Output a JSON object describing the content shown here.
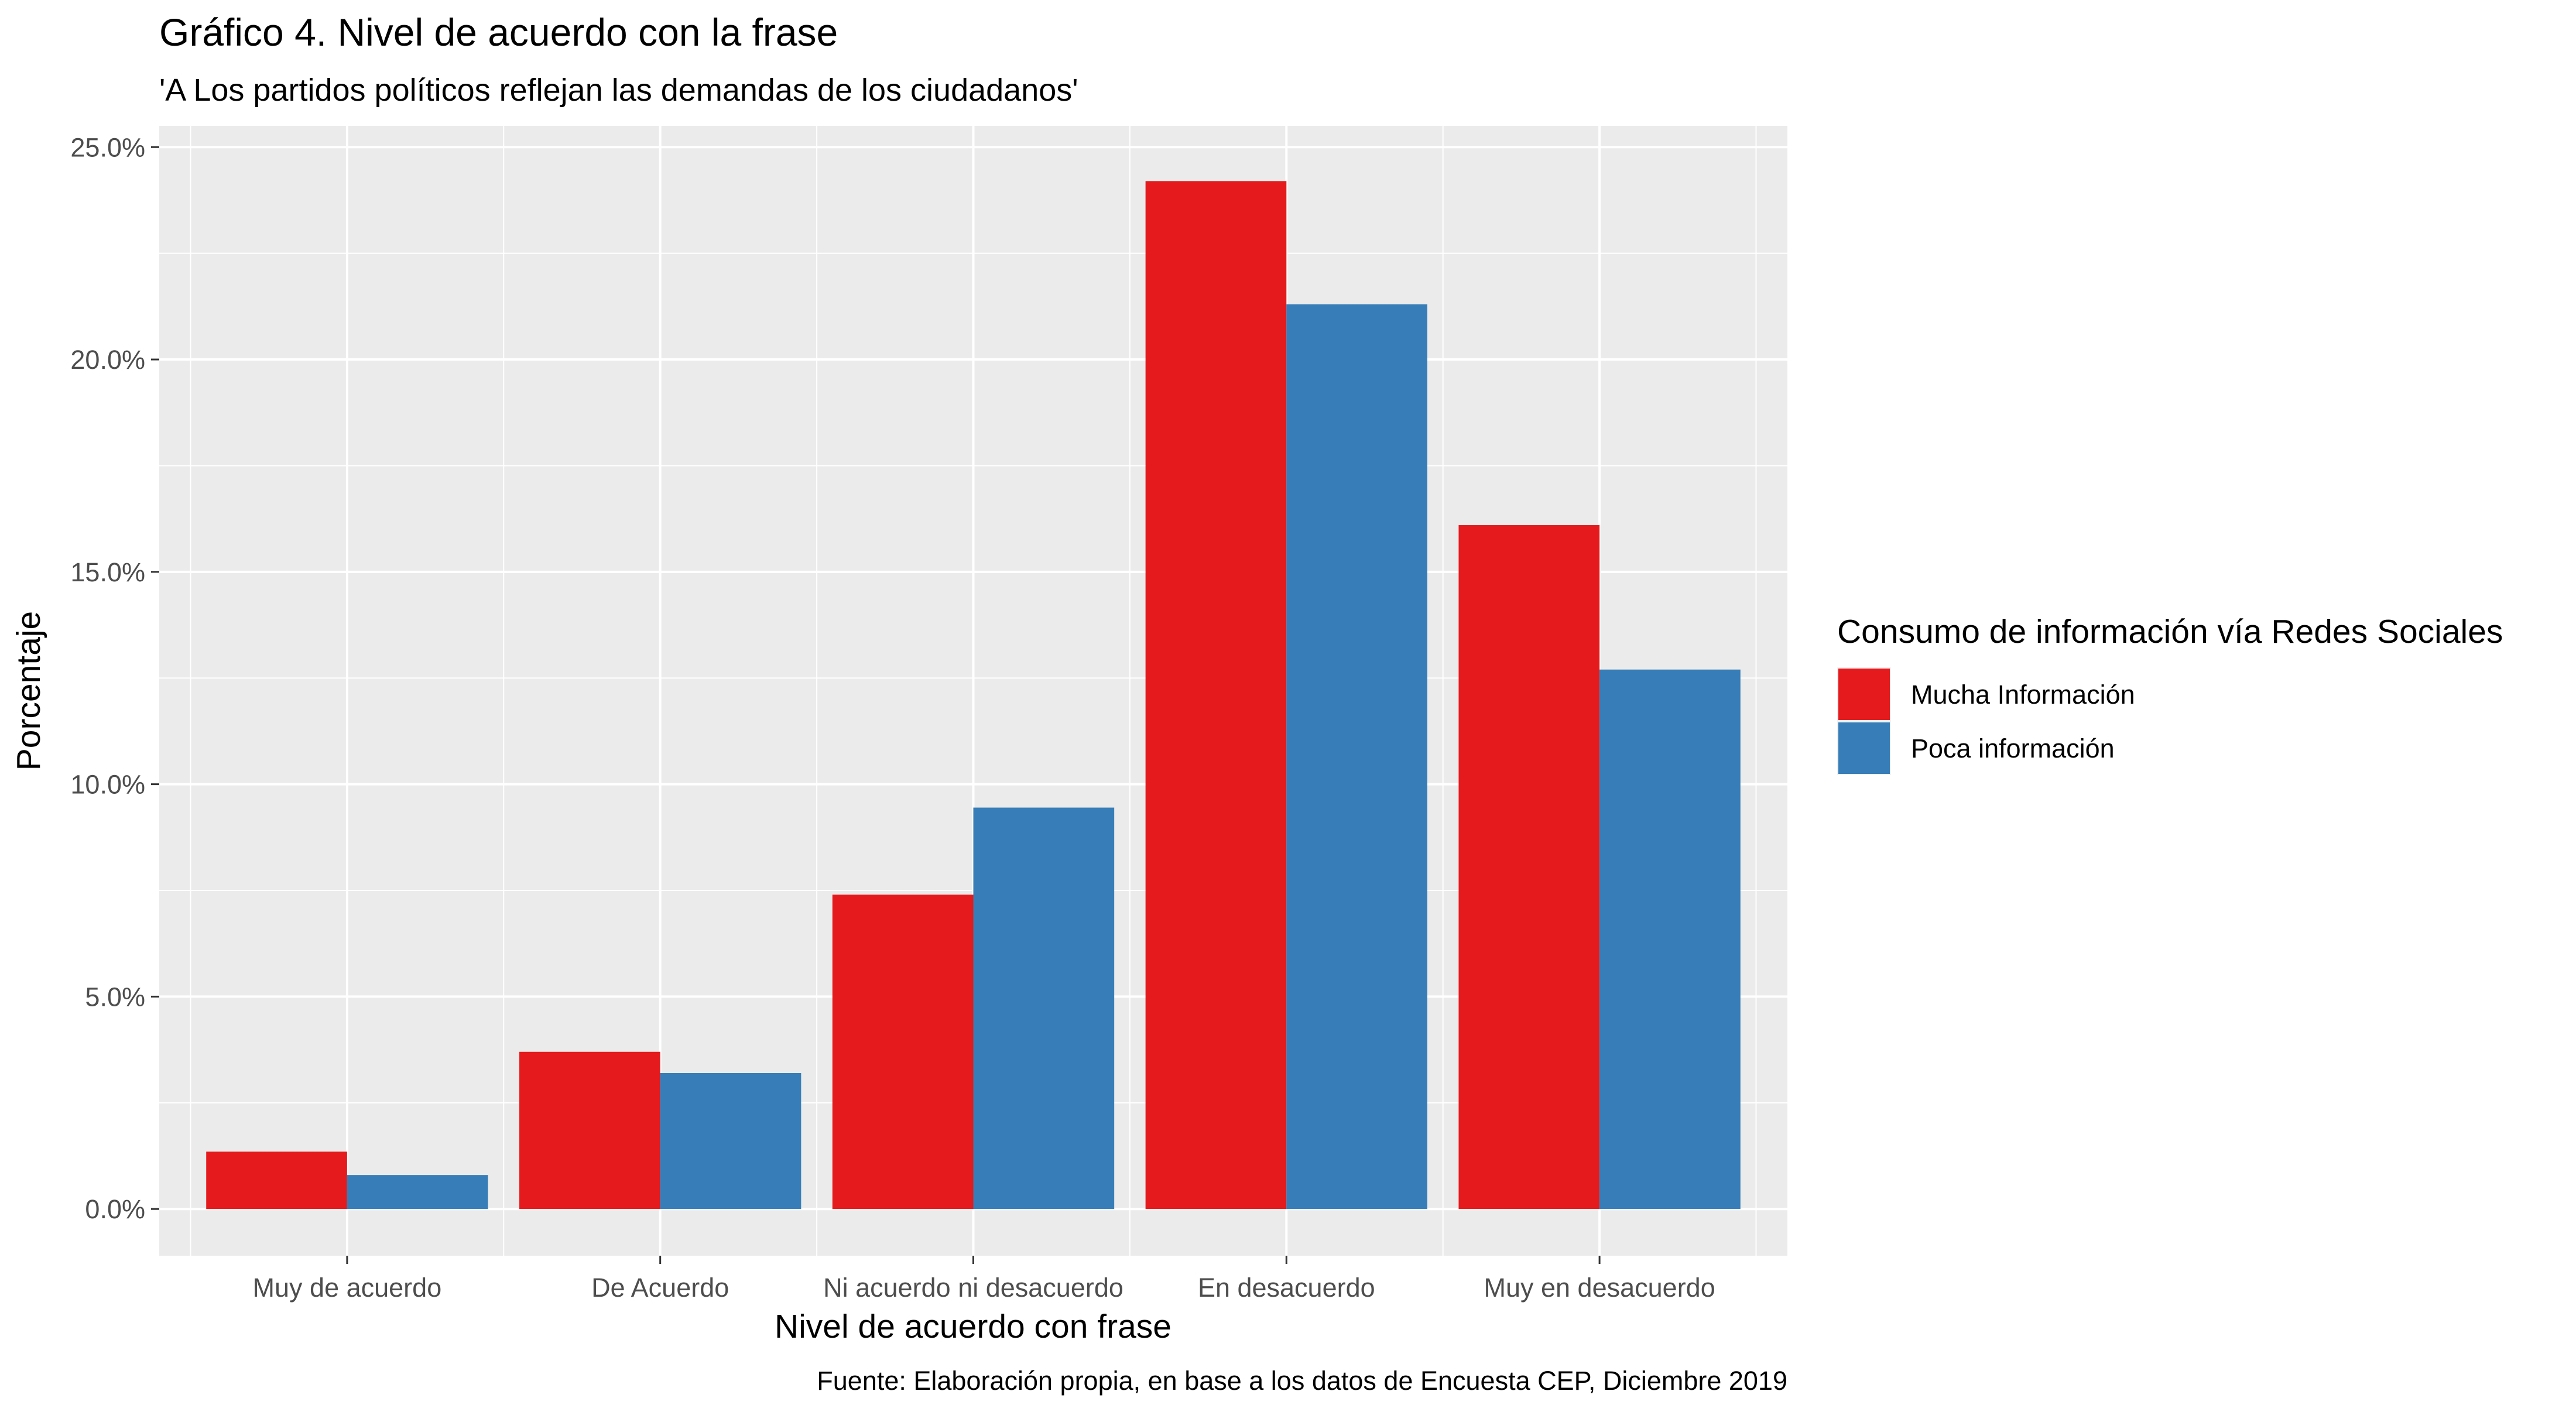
{
  "chart_data": {
    "type": "bar",
    "title": "Gráfico 4. Nivel de acuerdo con la frase",
    "subtitle": "'A Los partidos políticos reflejan las demandas de los ciudadanos'",
    "xlabel": "Nivel de acuerdo con frase",
    "ylabel": "Porcentaje",
    "caption": "Fuente: Elaboración propia, en base a los datos de Encuesta CEP, Diciembre 2019",
    "categories": [
      "Muy de acuerdo",
      "De Acuerdo",
      "Ni acuerdo ni desacuerdo",
      "En desacuerdo",
      "Muy en desacuerdo"
    ],
    "series": [
      {
        "name": "Mucha Información",
        "color": "#E41A1C",
        "values": [
          1.35,
          3.7,
          7.4,
          24.2,
          16.1
        ]
      },
      {
        "name": "Poca información",
        "color": "#377EB8",
        "values": [
          0.8,
          3.2,
          9.45,
          21.3,
          12.7
        ]
      }
    ],
    "ylim": [
      -1.1,
      25.5
    ],
    "yticks": [
      0,
      5,
      10,
      15,
      20,
      25
    ],
    "ytick_labels": [
      "0.0%",
      "5.0%",
      "10.0%",
      "15.0%",
      "20.0%",
      "25.0%"
    ],
    "legend_title": "Consumo de información vía Redes Sociales",
    "legend_position": "right",
    "grid": true,
    "panel_color": "#EBEBEB"
  }
}
